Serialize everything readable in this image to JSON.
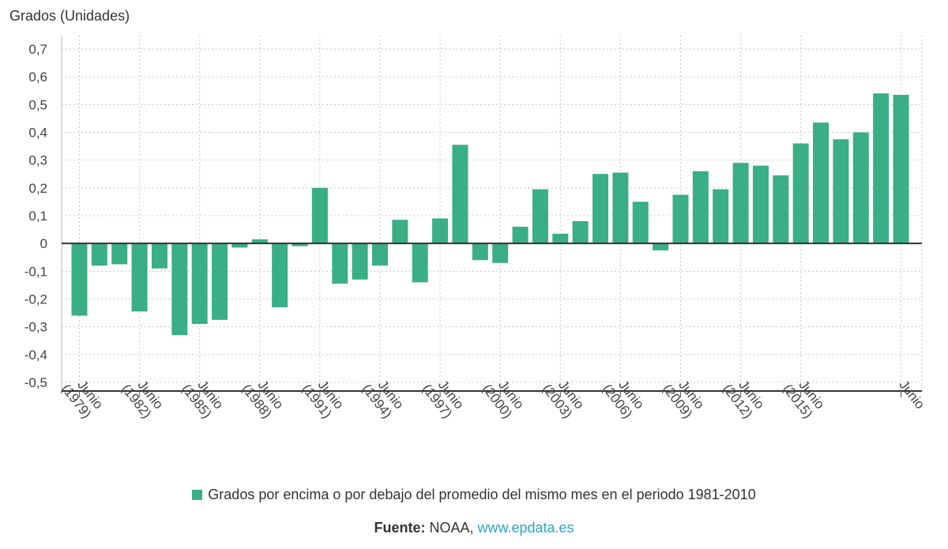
{
  "chart_data": {
    "type": "bar",
    "ylabel": "Grados (Unidades)",
    "ylim": [
      -0.5,
      0.7
    ],
    "yticks": [
      "0,7",
      "0,6",
      "0,5",
      "0,4",
      "0,3",
      "0,2",
      "0,1",
      "0",
      "-0,1",
      "-0,2",
      "-0,3",
      "-0,4",
      "-0,5"
    ],
    "grid": true,
    "x_labels": [
      {
        "year_index": 0,
        "line1": "Junio",
        "line2": "(1979)"
      },
      {
        "year_index": 3,
        "line1": "Junio",
        "line2": "(1982)"
      },
      {
        "year_index": 6,
        "line1": "Junio",
        "line2": "(1985)"
      },
      {
        "year_index": 9,
        "line1": "Junio",
        "line2": "(1988)"
      },
      {
        "year_index": 12,
        "line1": "Junio",
        "line2": "(1991)"
      },
      {
        "year_index": 15,
        "line1": "Junio",
        "line2": "(1994)"
      },
      {
        "year_index": 18,
        "line1": "Junio",
        "line2": "(1997)"
      },
      {
        "year_index": 21,
        "line1": "Junio",
        "line2": "(2000)"
      },
      {
        "year_index": 24,
        "line1": "Junio",
        "line2": "(2003)"
      },
      {
        "year_index": 27,
        "line1": "Junio",
        "line2": "(2006)"
      },
      {
        "year_index": 30,
        "line1": "Junio",
        "line2": "(2009)"
      },
      {
        "year_index": 33,
        "line1": "Junio",
        "line2": "(2012)"
      },
      {
        "year_index": 36,
        "line1": "Junio",
        "line2": "(2015)"
      },
      {
        "year_index": 41,
        "line1": "Junio",
        "line2": ""
      }
    ],
    "series": [
      {
        "name": "Grados por encima o por debajo del promedio del mismo mes en el periodo 1981-2010",
        "color": "#3aae84",
        "values": [
          -0.26,
          -0.08,
          -0.075,
          -0.245,
          -0.09,
          -0.33,
          -0.29,
          -0.275,
          -0.015,
          0.015,
          -0.23,
          -0.01,
          0.2,
          -0.145,
          -0.13,
          -0.08,
          0.085,
          -0.14,
          0.09,
          0.355,
          -0.06,
          -0.07,
          0.06,
          0.195,
          0.035,
          0.08,
          0.25,
          0.255,
          0.15,
          -0.025,
          0.175,
          0.26,
          0.195,
          0.29,
          0.28,
          0.245,
          0.36,
          0.435,
          0.375,
          0.4,
          0.54,
          0.535
        ]
      }
    ]
  },
  "legend": {
    "label": "Grados por encima o por debajo del promedio del mismo mes en el periodo 1981-2010"
  },
  "source": {
    "label": "Fuente:",
    "text": " NOAA, ",
    "link": "www.epdata.es"
  }
}
